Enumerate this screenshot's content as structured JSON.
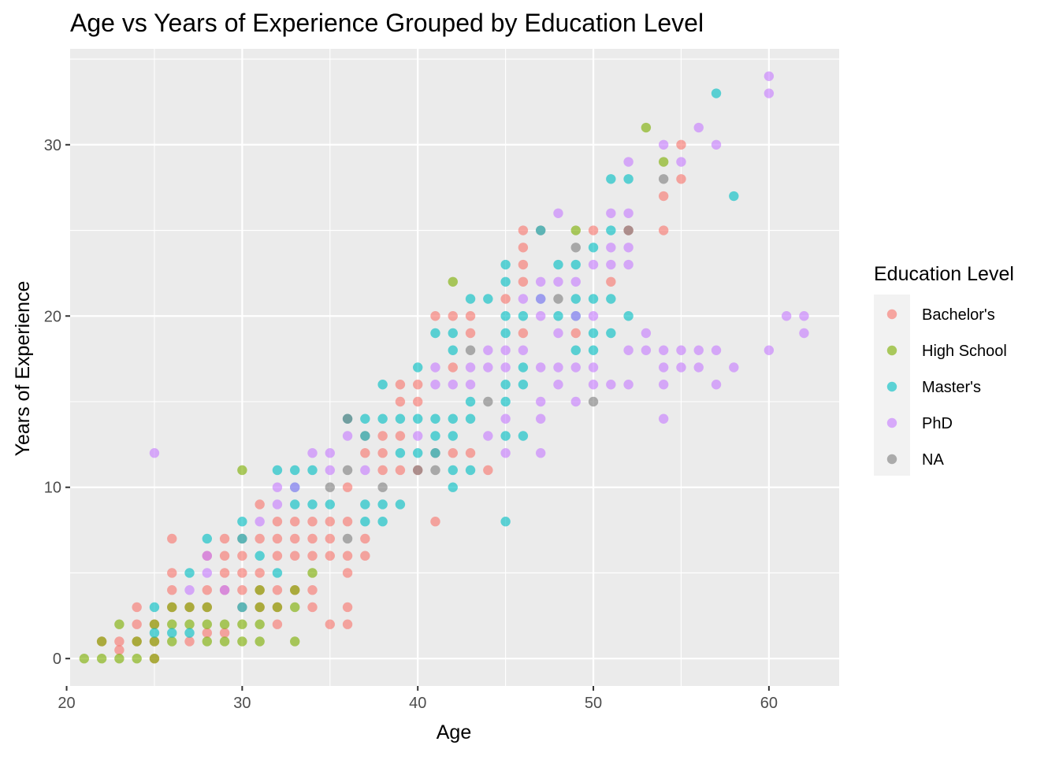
{
  "chart_data": {
    "type": "scatter",
    "title": "Age vs Years of Experience Grouped by Education Level",
    "xlabel": "Age",
    "ylabel": "Years of Experience",
    "xlim": [
      20.2,
      64
    ],
    "ylim": [
      -1.6,
      35.6
    ],
    "x_ticks": [
      20,
      30,
      40,
      50,
      60
    ],
    "y_ticks": [
      0,
      10,
      20,
      30
    ],
    "grid": true,
    "legend": {
      "title": "Education Level",
      "position": "right",
      "entries": [
        "Bachelor's",
        "High School",
        "Master's",
        "PhD",
        "NA"
      ]
    },
    "colors": {
      "Bachelor's": "#F8766D",
      "High School": "#7CAE00",
      "Master's": "#00BFC4",
      "PhD": "#C77CFF",
      "NA": "#7F7F7F"
    },
    "series": [
      {
        "name": "Bachelor's",
        "points": [
          [
            22,
            1
          ],
          [
            23,
            0.5
          ],
          [
            23,
            1
          ],
          [
            24,
            1
          ],
          [
            24,
            2
          ],
          [
            24,
            3
          ],
          [
            25,
            0
          ],
          [
            25,
            1
          ],
          [
            25,
            2
          ],
          [
            26,
            3
          ],
          [
            26,
            4
          ],
          [
            26,
            5
          ],
          [
            26,
            7
          ],
          [
            27,
            1
          ],
          [
            27,
            3
          ],
          [
            28,
            1.5
          ],
          [
            28,
            3
          ],
          [
            28,
            4
          ],
          [
            28,
            6
          ],
          [
            29,
            1.5
          ],
          [
            29,
            4
          ],
          [
            29,
            5
          ],
          [
            29,
            6
          ],
          [
            29,
            7
          ],
          [
            30,
            3
          ],
          [
            30,
            4
          ],
          [
            30,
            5
          ],
          [
            30,
            6
          ],
          [
            30,
            7
          ],
          [
            31,
            3
          ],
          [
            31,
            4
          ],
          [
            31,
            5
          ],
          [
            31,
            7
          ],
          [
            31,
            9
          ],
          [
            32,
            2
          ],
          [
            32,
            3
          ],
          [
            32,
            4
          ],
          [
            32,
            6
          ],
          [
            32,
            7
          ],
          [
            32,
            8
          ],
          [
            33,
            4
          ],
          [
            33,
            6
          ],
          [
            33,
            7
          ],
          [
            33,
            8
          ],
          [
            34,
            3
          ],
          [
            34,
            4
          ],
          [
            34,
            6
          ],
          [
            34,
            7
          ],
          [
            34,
            8
          ],
          [
            35,
            2
          ],
          [
            35,
            6
          ],
          [
            35,
            7
          ],
          [
            35,
            8
          ],
          [
            36,
            2
          ],
          [
            36,
            3
          ],
          [
            36,
            5
          ],
          [
            36,
            6
          ],
          [
            36,
            8
          ],
          [
            36,
            10
          ],
          [
            37,
            6
          ],
          [
            37,
            7
          ],
          [
            37,
            12
          ],
          [
            37,
            13
          ],
          [
            38,
            11
          ],
          [
            38,
            12
          ],
          [
            38,
            13
          ],
          [
            39,
            11
          ],
          [
            39,
            13
          ],
          [
            39,
            15
          ],
          [
            39,
            16
          ],
          [
            40,
            11
          ],
          [
            40,
            15
          ],
          [
            40,
            16
          ],
          [
            41,
            8
          ],
          [
            41,
            12
          ],
          [
            41,
            20
          ],
          [
            42,
            12
          ],
          [
            42,
            17
          ],
          [
            42,
            20
          ],
          [
            43,
            12
          ],
          [
            43,
            19
          ],
          [
            43,
            20
          ],
          [
            44,
            11
          ],
          [
            45,
            21
          ],
          [
            46,
            19
          ],
          [
            46,
            22
          ],
          [
            46,
            23
          ],
          [
            46,
            24
          ],
          [
            46,
            25
          ],
          [
            47,
            25
          ],
          [
            49,
            19
          ],
          [
            50,
            25
          ],
          [
            51,
            22
          ],
          [
            52,
            25
          ],
          [
            54,
            25
          ],
          [
            54,
            27
          ],
          [
            55,
            28
          ],
          [
            55,
            30
          ]
        ]
      },
      {
        "name": "High School",
        "points": [
          [
            21,
            0
          ],
          [
            22,
            0
          ],
          [
            22,
            1
          ],
          [
            23,
            0
          ],
          [
            23,
            2
          ],
          [
            24,
            0
          ],
          [
            24,
            1
          ],
          [
            25,
            0
          ],
          [
            25,
            1
          ],
          [
            25,
            2
          ],
          [
            26,
            1
          ],
          [
            26,
            2
          ],
          [
            26,
            3
          ],
          [
            27,
            2
          ],
          [
            27,
            3
          ],
          [
            28,
            1
          ],
          [
            28,
            2
          ],
          [
            28,
            3
          ],
          [
            29,
            1
          ],
          [
            29,
            2
          ],
          [
            30,
            1
          ],
          [
            30,
            2
          ],
          [
            30,
            11
          ],
          [
            31,
            1
          ],
          [
            31,
            2
          ],
          [
            31,
            3
          ],
          [
            31,
            4
          ],
          [
            32,
            3
          ],
          [
            33,
            1
          ],
          [
            33,
            3
          ],
          [
            33,
            4
          ],
          [
            34,
            5
          ],
          [
            42,
            22
          ],
          [
            49,
            25
          ],
          [
            53,
            31
          ],
          [
            54,
            29
          ]
        ]
      },
      {
        "name": "Master's",
        "points": [
          [
            25,
            1.5
          ],
          [
            25,
            3
          ],
          [
            26,
            1.5
          ],
          [
            27,
            1.5
          ],
          [
            27,
            5
          ],
          [
            28,
            7
          ],
          [
            30,
            3
          ],
          [
            30,
            7
          ],
          [
            30,
            8
          ],
          [
            31,
            6
          ],
          [
            32,
            5
          ],
          [
            32,
            11
          ],
          [
            33,
            9
          ],
          [
            33,
            10
          ],
          [
            33,
            11
          ],
          [
            34,
            9
          ],
          [
            34,
            11
          ],
          [
            35,
            9
          ],
          [
            36,
            14
          ],
          [
            37,
            8
          ],
          [
            37,
            9
          ],
          [
            37,
            13
          ],
          [
            37,
            14
          ],
          [
            38,
            8
          ],
          [
            38,
            9
          ],
          [
            38,
            14
          ],
          [
            38,
            16
          ],
          [
            39,
            9
          ],
          [
            39,
            12
          ],
          [
            39,
            14
          ],
          [
            40,
            12
          ],
          [
            40,
            14
          ],
          [
            40,
            17
          ],
          [
            41,
            12
          ],
          [
            41,
            13
          ],
          [
            41,
            14
          ],
          [
            41,
            19
          ],
          [
            42,
            10
          ],
          [
            42,
            11
          ],
          [
            42,
            13
          ],
          [
            42,
            14
          ],
          [
            42,
            18
          ],
          [
            42,
            19
          ],
          [
            43,
            11
          ],
          [
            43,
            14
          ],
          [
            43,
            15
          ],
          [
            43,
            21
          ],
          [
            44,
            21
          ],
          [
            45,
            8
          ],
          [
            45,
            13
          ],
          [
            45,
            15
          ],
          [
            45,
            16
          ],
          [
            45,
            19
          ],
          [
            45,
            20
          ],
          [
            45,
            22
          ],
          [
            45,
            23
          ],
          [
            46,
            13
          ],
          [
            46,
            16
          ],
          [
            46,
            17
          ],
          [
            46,
            20
          ],
          [
            47,
            21
          ],
          [
            47,
            25
          ],
          [
            48,
            20
          ],
          [
            48,
            23
          ],
          [
            49,
            18
          ],
          [
            49,
            20
          ],
          [
            49,
            21
          ],
          [
            49,
            23
          ],
          [
            50,
            18
          ],
          [
            50,
            19
          ],
          [
            50,
            21
          ],
          [
            50,
            24
          ],
          [
            51,
            19
          ],
          [
            51,
            21
          ],
          [
            51,
            25
          ],
          [
            51,
            28
          ],
          [
            52,
            20
          ],
          [
            52,
            28
          ],
          [
            57,
            33
          ],
          [
            58,
            27
          ]
        ]
      },
      {
        "name": "PhD",
        "points": [
          [
            25,
            12
          ],
          [
            27,
            4
          ],
          [
            28,
            5
          ],
          [
            28,
            6
          ],
          [
            29,
            4
          ],
          [
            31,
            8
          ],
          [
            32,
            9
          ],
          [
            32,
            10
          ],
          [
            33,
            10
          ],
          [
            34,
            12
          ],
          [
            35,
            11
          ],
          [
            35,
            12
          ],
          [
            36,
            13
          ],
          [
            37,
            11
          ],
          [
            40,
            13
          ],
          [
            41,
            16
          ],
          [
            41,
            17
          ],
          [
            42,
            16
          ],
          [
            43,
            16
          ],
          [
            43,
            17
          ],
          [
            44,
            13
          ],
          [
            44,
            17
          ],
          [
            44,
            18
          ],
          [
            45,
            12
          ],
          [
            45,
            14
          ],
          [
            45,
            17
          ],
          [
            45,
            18
          ],
          [
            46,
            18
          ],
          [
            46,
            21
          ],
          [
            47,
            12
          ],
          [
            47,
            14
          ],
          [
            47,
            15
          ],
          [
            47,
            17
          ],
          [
            47,
            20
          ],
          [
            47,
            21
          ],
          [
            47,
            22
          ],
          [
            48,
            16
          ],
          [
            48,
            17
          ],
          [
            48,
            19
          ],
          [
            48,
            22
          ],
          [
            48,
            26
          ],
          [
            49,
            15
          ],
          [
            49,
            17
          ],
          [
            49,
            20
          ],
          [
            49,
            22
          ],
          [
            50,
            16
          ],
          [
            50,
            17
          ],
          [
            50,
            20
          ],
          [
            50,
            23
          ],
          [
            51,
            16
          ],
          [
            51,
            23
          ],
          [
            51,
            24
          ],
          [
            51,
            26
          ],
          [
            52,
            16
          ],
          [
            52,
            18
          ],
          [
            52,
            23
          ],
          [
            52,
            24
          ],
          [
            52,
            26
          ],
          [
            52,
            29
          ],
          [
            53,
            18
          ],
          [
            53,
            19
          ],
          [
            54,
            14
          ],
          [
            54,
            16
          ],
          [
            54,
            17
          ],
          [
            54,
            18
          ],
          [
            54,
            30
          ],
          [
            55,
            17
          ],
          [
            55,
            18
          ],
          [
            55,
            29
          ],
          [
            56,
            17
          ],
          [
            56,
            18
          ],
          [
            56,
            31
          ],
          [
            57,
            16
          ],
          [
            57,
            18
          ],
          [
            57,
            30
          ],
          [
            58,
            17
          ],
          [
            60,
            18
          ],
          [
            60,
            33
          ],
          [
            60,
            34
          ],
          [
            61,
            20
          ],
          [
            62,
            19
          ],
          [
            62,
            20
          ]
        ]
      },
      {
        "name": "NA",
        "points": [
          [
            35,
            10
          ],
          [
            36,
            7
          ],
          [
            36,
            11
          ],
          [
            36,
            14
          ],
          [
            38,
            10
          ],
          [
            40,
            11
          ],
          [
            41,
            11
          ],
          [
            43,
            18
          ],
          [
            44,
            15
          ],
          [
            48,
            21
          ],
          [
            49,
            24
          ],
          [
            50,
            15
          ],
          [
            52,
            25
          ],
          [
            54,
            28
          ]
        ]
      }
    ]
  }
}
